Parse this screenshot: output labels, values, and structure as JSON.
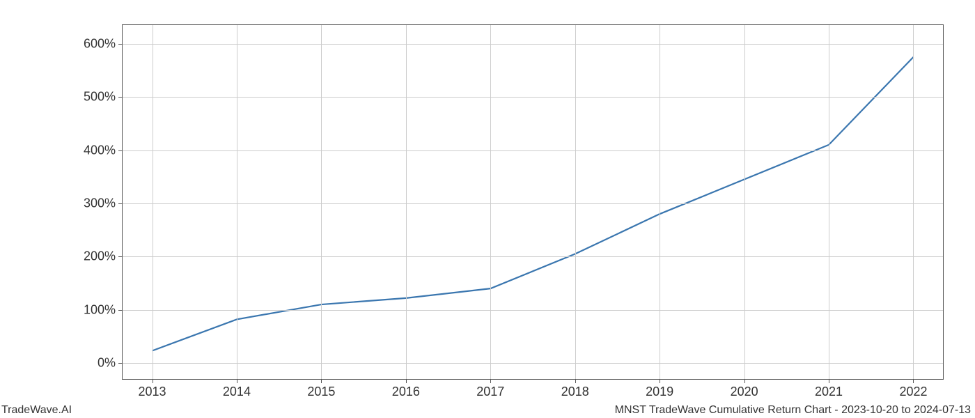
{
  "chart": {
    "type": "line",
    "x_categories": [
      "2013",
      "2014",
      "2015",
      "2016",
      "2017",
      "2018",
      "2019",
      "2020",
      "2021",
      "2022"
    ],
    "y_values": [
      23,
      82,
      110,
      122,
      140,
      205,
      280,
      345,
      410,
      575
    ],
    "line_color": "#3a76af",
    "line_width": 2.2,
    "background_color": "#ffffff",
    "grid_color": "#cccccc",
    "border_color": "#555555",
    "xlim_idx": [
      -0.35,
      9.35
    ],
    "ylim": [
      -30,
      635
    ],
    "y_ticks": [
      0,
      100,
      200,
      300,
      400,
      500,
      600
    ],
    "y_tick_labels": [
      "0%",
      "100%",
      "200%",
      "300%",
      "400%",
      "500%",
      "600%"
    ],
    "tick_fontsize": 18,
    "footer_fontsize": 16
  },
  "footer": {
    "left": "TradeWave.AI",
    "right": "MNST TradeWave Cumulative Return Chart - 2023-10-20 to 2024-07-13"
  }
}
